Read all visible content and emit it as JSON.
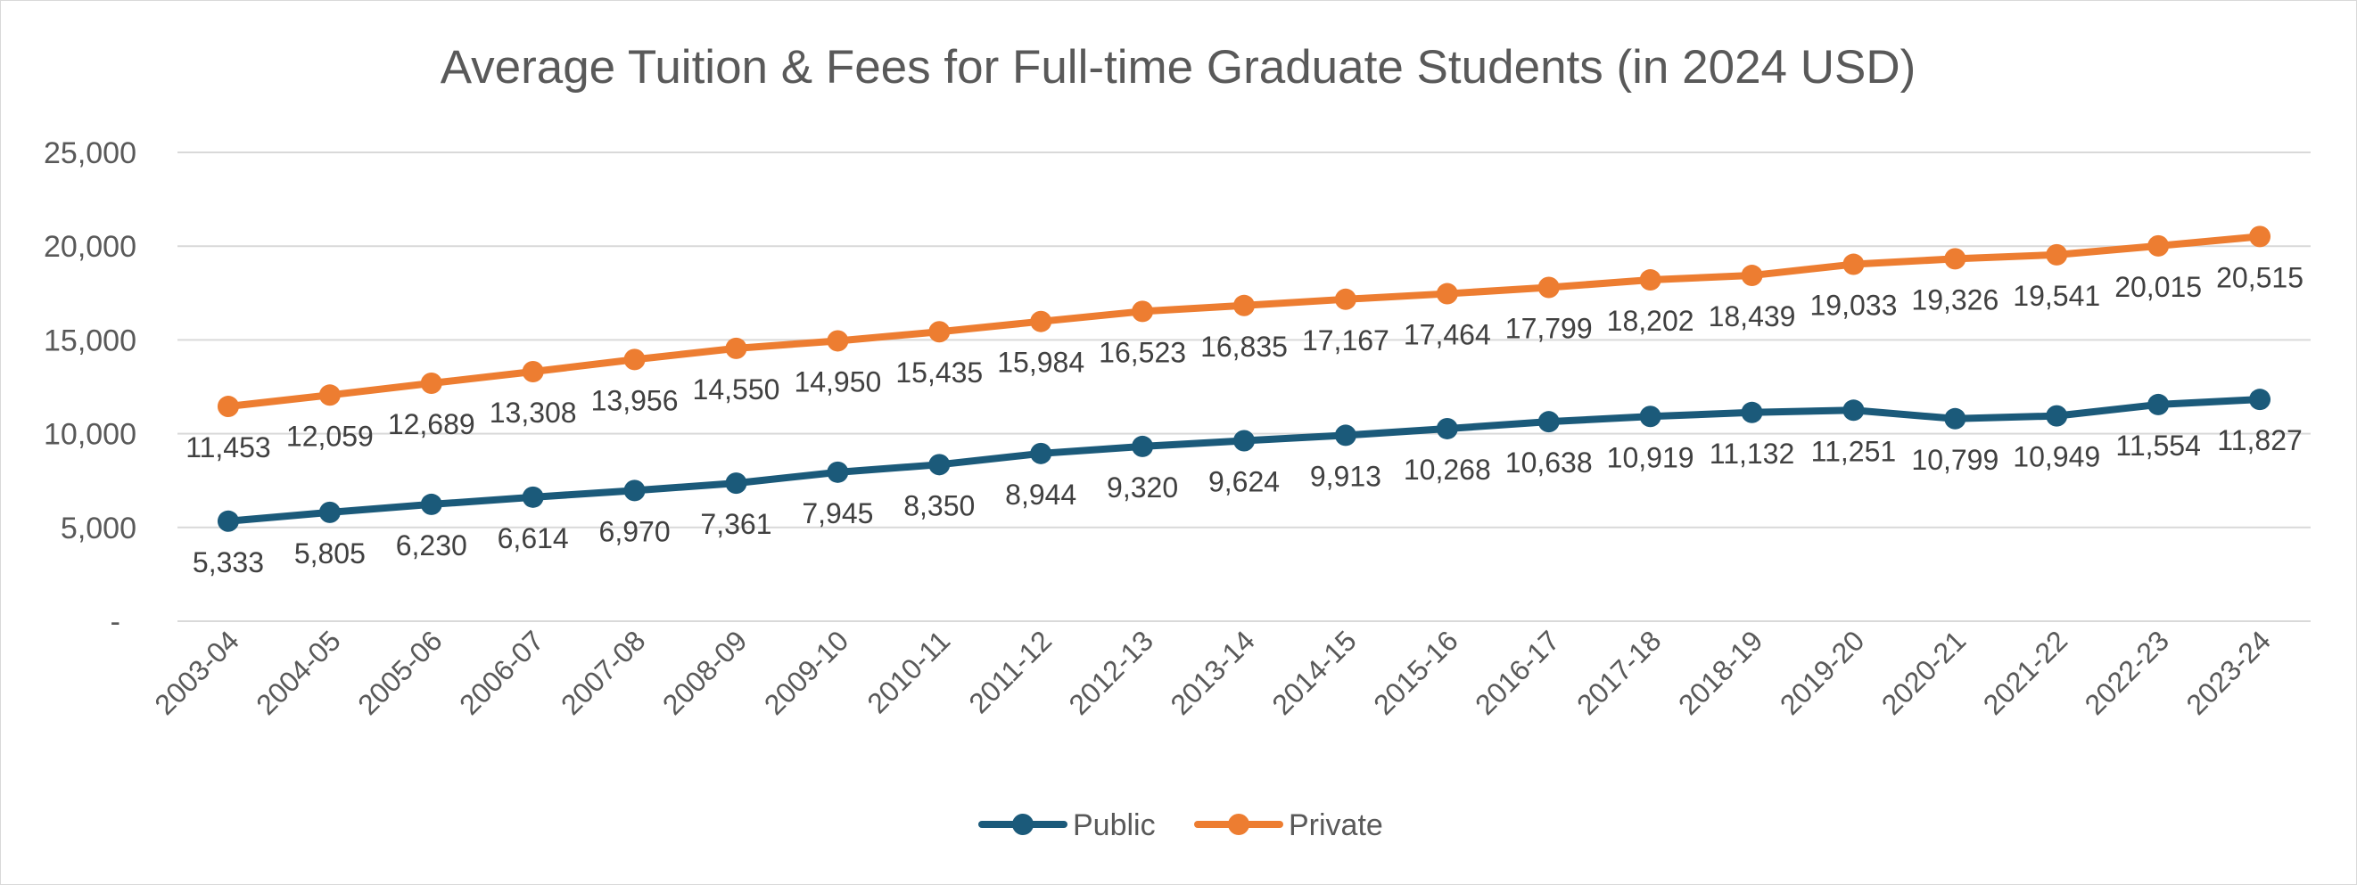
{
  "chart_data": {
    "type": "line",
    "title": "Average Tuition & Fees for Full-time Graduate Students (in 2024 USD)",
    "xlabel": "",
    "ylabel": "",
    "ylim": [
      0,
      25000
    ],
    "yticks": [
      0,
      5000,
      10000,
      15000,
      20000,
      25000
    ],
    "ytick_labels": [
      "-",
      "5,000",
      "10,000",
      "15,000",
      "20,000",
      "25,000"
    ],
    "grid": true,
    "legend_position": "bottom",
    "categories": [
      "2003-04",
      "2004-05",
      "2005-06",
      "2006-07",
      "2007-08",
      "2008-09",
      "2009-10",
      "2010-11",
      "2011-12",
      "2012-13",
      "2013-14",
      "2014-15",
      "2015-16",
      "2016-17",
      "2017-18",
      "2018-19",
      "2019-20",
      "2020-21",
      "2021-22",
      "2022-23",
      "2023-24"
    ],
    "series": [
      {
        "name": "Public",
        "color": "#1b5a7a",
        "values": [
          5333,
          5805,
          6230,
          6614,
          6970,
          7361,
          7945,
          8350,
          8944,
          9320,
          9624,
          9913,
          10268,
          10638,
          10919,
          11132,
          11251,
          10799,
          10949,
          11554,
          11827
        ],
        "labels": [
          "5,333",
          "5,805",
          "6,230",
          "6,614",
          "6,970",
          "7,361",
          "7,945",
          "8,350",
          "8,944",
          "9,320",
          "9,624",
          "9,913",
          "10,268",
          "10,638",
          "10,919",
          "11,132",
          "11,251",
          "10,799",
          "10,949",
          "11,554",
          "11,827"
        ]
      },
      {
        "name": "Private",
        "color": "#ed7d31",
        "values": [
          11453,
          12059,
          12689,
          13308,
          13956,
          14550,
          14950,
          15435,
          15984,
          16523,
          16835,
          17167,
          17464,
          17799,
          18202,
          18439,
          19033,
          19326,
          19541,
          20015,
          20515
        ],
        "labels": [
          "11,453",
          "12,059",
          "12,689",
          "13,308",
          "13,956",
          "14,550",
          "14,950",
          "15,435",
          "15,984",
          "16,523",
          "16,835",
          "17,167",
          "17,464",
          "17,799",
          "18,202",
          "18,439",
          "19,033",
          "19,326",
          "19,541",
          "20,015",
          "20,515"
        ]
      }
    ]
  }
}
